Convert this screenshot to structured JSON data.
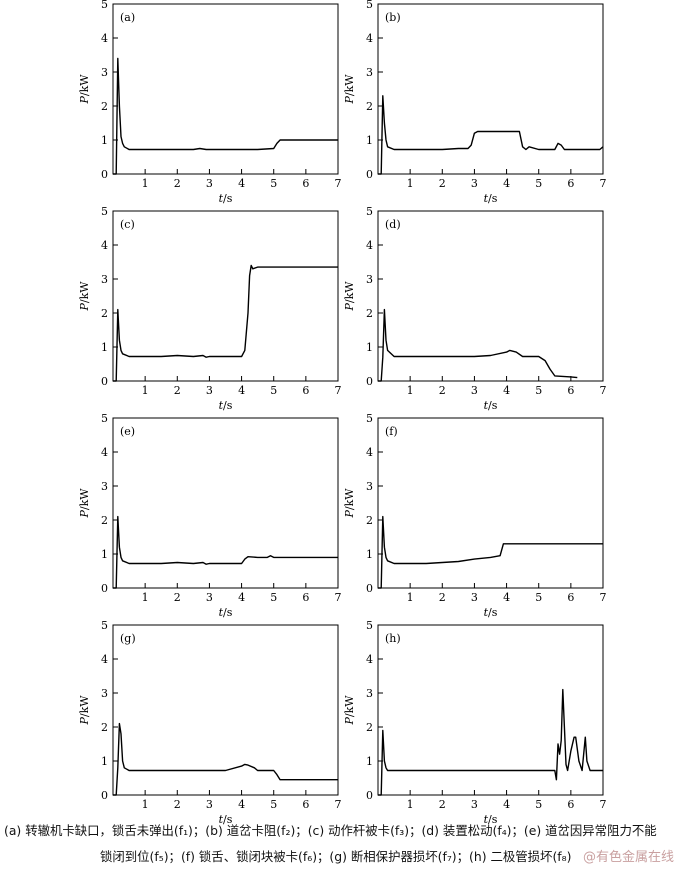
{
  "axis": {
    "xlabel_italic": "t",
    "xlabel_unit": "/s",
    "ylabel_italic": "P",
    "ylabel_unit": "/kW",
    "xlim": [
      0,
      7
    ],
    "ylim": [
      0,
      5
    ],
    "xticks": [
      1,
      2,
      3,
      4,
      5,
      6,
      7
    ],
    "yticks": [
      0,
      1,
      2,
      3,
      4,
      5
    ]
  },
  "chart_data": [
    {
      "type": "line",
      "label": "(a)",
      "x": [
        0.0,
        0.1,
        0.15,
        0.2,
        0.25,
        0.3,
        0.35,
        0.5,
        1.0,
        2.0,
        2.5,
        2.7,
        2.9,
        3.5,
        4.5,
        5.0,
        5.1,
        5.2,
        6.0,
        7.0
      ],
      "y": [
        0.0,
        0.0,
        3.4,
        2.0,
        1.1,
        0.9,
        0.8,
        0.72,
        0.72,
        0.72,
        0.72,
        0.75,
        0.72,
        0.72,
        0.72,
        0.75,
        0.9,
        1.0,
        1.0,
        1.0
      ]
    },
    {
      "type": "line",
      "label": "(b)",
      "x": [
        0.0,
        0.1,
        0.15,
        0.2,
        0.25,
        0.3,
        0.5,
        1.0,
        2.0,
        2.5,
        2.8,
        2.9,
        3.0,
        3.1,
        3.3,
        4.0,
        4.4,
        4.5,
        4.6,
        4.7,
        5.0,
        5.5,
        5.6,
        5.7,
        5.8,
        6.0,
        6.9,
        7.0
      ],
      "y": [
        0.0,
        0.0,
        2.3,
        1.5,
        1.0,
        0.8,
        0.72,
        0.72,
        0.72,
        0.75,
        0.75,
        0.85,
        1.2,
        1.25,
        1.25,
        1.25,
        1.25,
        0.8,
        0.72,
        0.8,
        0.72,
        0.72,
        0.9,
        0.85,
        0.72,
        0.72,
        0.72,
        0.8
      ]
    },
    {
      "type": "line",
      "label": "(c)",
      "x": [
        0.0,
        0.1,
        0.15,
        0.2,
        0.25,
        0.3,
        0.5,
        1.0,
        1.5,
        2.0,
        2.5,
        2.8,
        2.9,
        3.0,
        3.5,
        4.0,
        4.1,
        4.2,
        4.25,
        4.3,
        4.35,
        4.5,
        5.0,
        6.0,
        7.0
      ],
      "y": [
        0.0,
        0.0,
        2.1,
        1.2,
        0.9,
        0.8,
        0.72,
        0.72,
        0.72,
        0.75,
        0.72,
        0.75,
        0.7,
        0.72,
        0.72,
        0.72,
        0.9,
        2.0,
        3.1,
        3.4,
        3.3,
        3.35,
        3.35,
        3.35,
        3.35
      ]
    },
    {
      "type": "line",
      "label": "(d)",
      "x": [
        0.0,
        0.1,
        0.15,
        0.2,
        0.25,
        0.3,
        0.5,
        1.0,
        2.0,
        3.0,
        3.5,
        4.0,
        4.1,
        4.3,
        4.5,
        5.0,
        5.2,
        5.35,
        5.5,
        6.0,
        6.2
      ],
      "y": [
        0.0,
        0.0,
        0.7,
        2.1,
        1.2,
        0.9,
        0.72,
        0.72,
        0.72,
        0.72,
        0.75,
        0.85,
        0.9,
        0.85,
        0.72,
        0.72,
        0.6,
        0.35,
        0.15,
        0.12,
        0.1
      ]
    },
    {
      "type": "line",
      "label": "(e)",
      "x": [
        0.0,
        0.1,
        0.15,
        0.2,
        0.25,
        0.3,
        0.5,
        1.0,
        1.5,
        2.0,
        2.5,
        2.8,
        2.9,
        3.0,
        3.5,
        4.0,
        4.1,
        4.2,
        4.5,
        4.8,
        4.9,
        5.0,
        6.0,
        7.0
      ],
      "y": [
        0.0,
        0.0,
        2.1,
        1.2,
        0.9,
        0.8,
        0.72,
        0.72,
        0.72,
        0.75,
        0.72,
        0.75,
        0.7,
        0.72,
        0.72,
        0.72,
        0.85,
        0.92,
        0.9,
        0.9,
        0.95,
        0.9,
        0.9,
        0.9
      ]
    },
    {
      "type": "line",
      "label": "(f)",
      "x": [
        0.0,
        0.1,
        0.15,
        0.2,
        0.25,
        0.3,
        0.5,
        1.0,
        1.5,
        2.0,
        2.5,
        3.0,
        3.5,
        3.8,
        3.9,
        4.0,
        5.0,
        6.0,
        7.0
      ],
      "y": [
        0.0,
        0.0,
        2.1,
        1.2,
        0.9,
        0.8,
        0.72,
        0.72,
        0.72,
        0.75,
        0.78,
        0.85,
        0.9,
        0.95,
        1.3,
        1.3,
        1.3,
        1.3,
        1.3
      ]
    },
    {
      "type": "line",
      "label": "(g)",
      "x": [
        0.0,
        0.1,
        0.15,
        0.2,
        0.25,
        0.3,
        0.35,
        0.5,
        1.0,
        2.0,
        3.0,
        3.5,
        4.0,
        4.1,
        4.2,
        4.4,
        4.5,
        5.0,
        5.1,
        5.2,
        5.5,
        6.0,
        7.0
      ],
      "y": [
        0.0,
        0.0,
        0.8,
        2.1,
        1.8,
        1.0,
        0.8,
        0.72,
        0.72,
        0.72,
        0.72,
        0.72,
        0.85,
        0.9,
        0.88,
        0.8,
        0.72,
        0.72,
        0.6,
        0.45,
        0.45,
        0.45,
        0.45
      ]
    },
    {
      "type": "line",
      "label": "(h)",
      "x": [
        0.0,
        0.1,
        0.15,
        0.2,
        0.25,
        0.3,
        0.5,
        1.0,
        2.0,
        3.0,
        4.0,
        5.0,
        5.5,
        5.55,
        5.6,
        5.65,
        5.7,
        5.75,
        5.8,
        5.85,
        5.9,
        6.0,
        6.1,
        6.15,
        6.25,
        6.35,
        6.45,
        6.5,
        6.6,
        6.7,
        7.0
      ],
      "y": [
        0.0,
        0.0,
        1.9,
        1.0,
        0.8,
        0.72,
        0.72,
        0.72,
        0.72,
        0.72,
        0.72,
        0.72,
        0.72,
        0.45,
        1.5,
        1.2,
        1.6,
        3.1,
        2.0,
        0.9,
        0.72,
        1.3,
        1.7,
        1.7,
        1.0,
        0.72,
        1.7,
        1.0,
        0.72,
        0.72,
        0.72
      ]
    }
  ],
  "caption": {
    "line1": "(a) 转辙机卡缺口，锁舌未弹出(f₁)；(b) 道岔卡阻(f₂)；(c) 动作杆被卡(f₃)；(d) 装置松动(f₄)；(e) 道岔因异常阻力不能",
    "line2": "锁闭到位(f₅)；(f) 锁舌、锁闭块被卡(f₆)；(g) 断相保护器损坏(f₇)；(h) 二极管损坏(f₈)"
  },
  "watermark": "@有色金属在线"
}
